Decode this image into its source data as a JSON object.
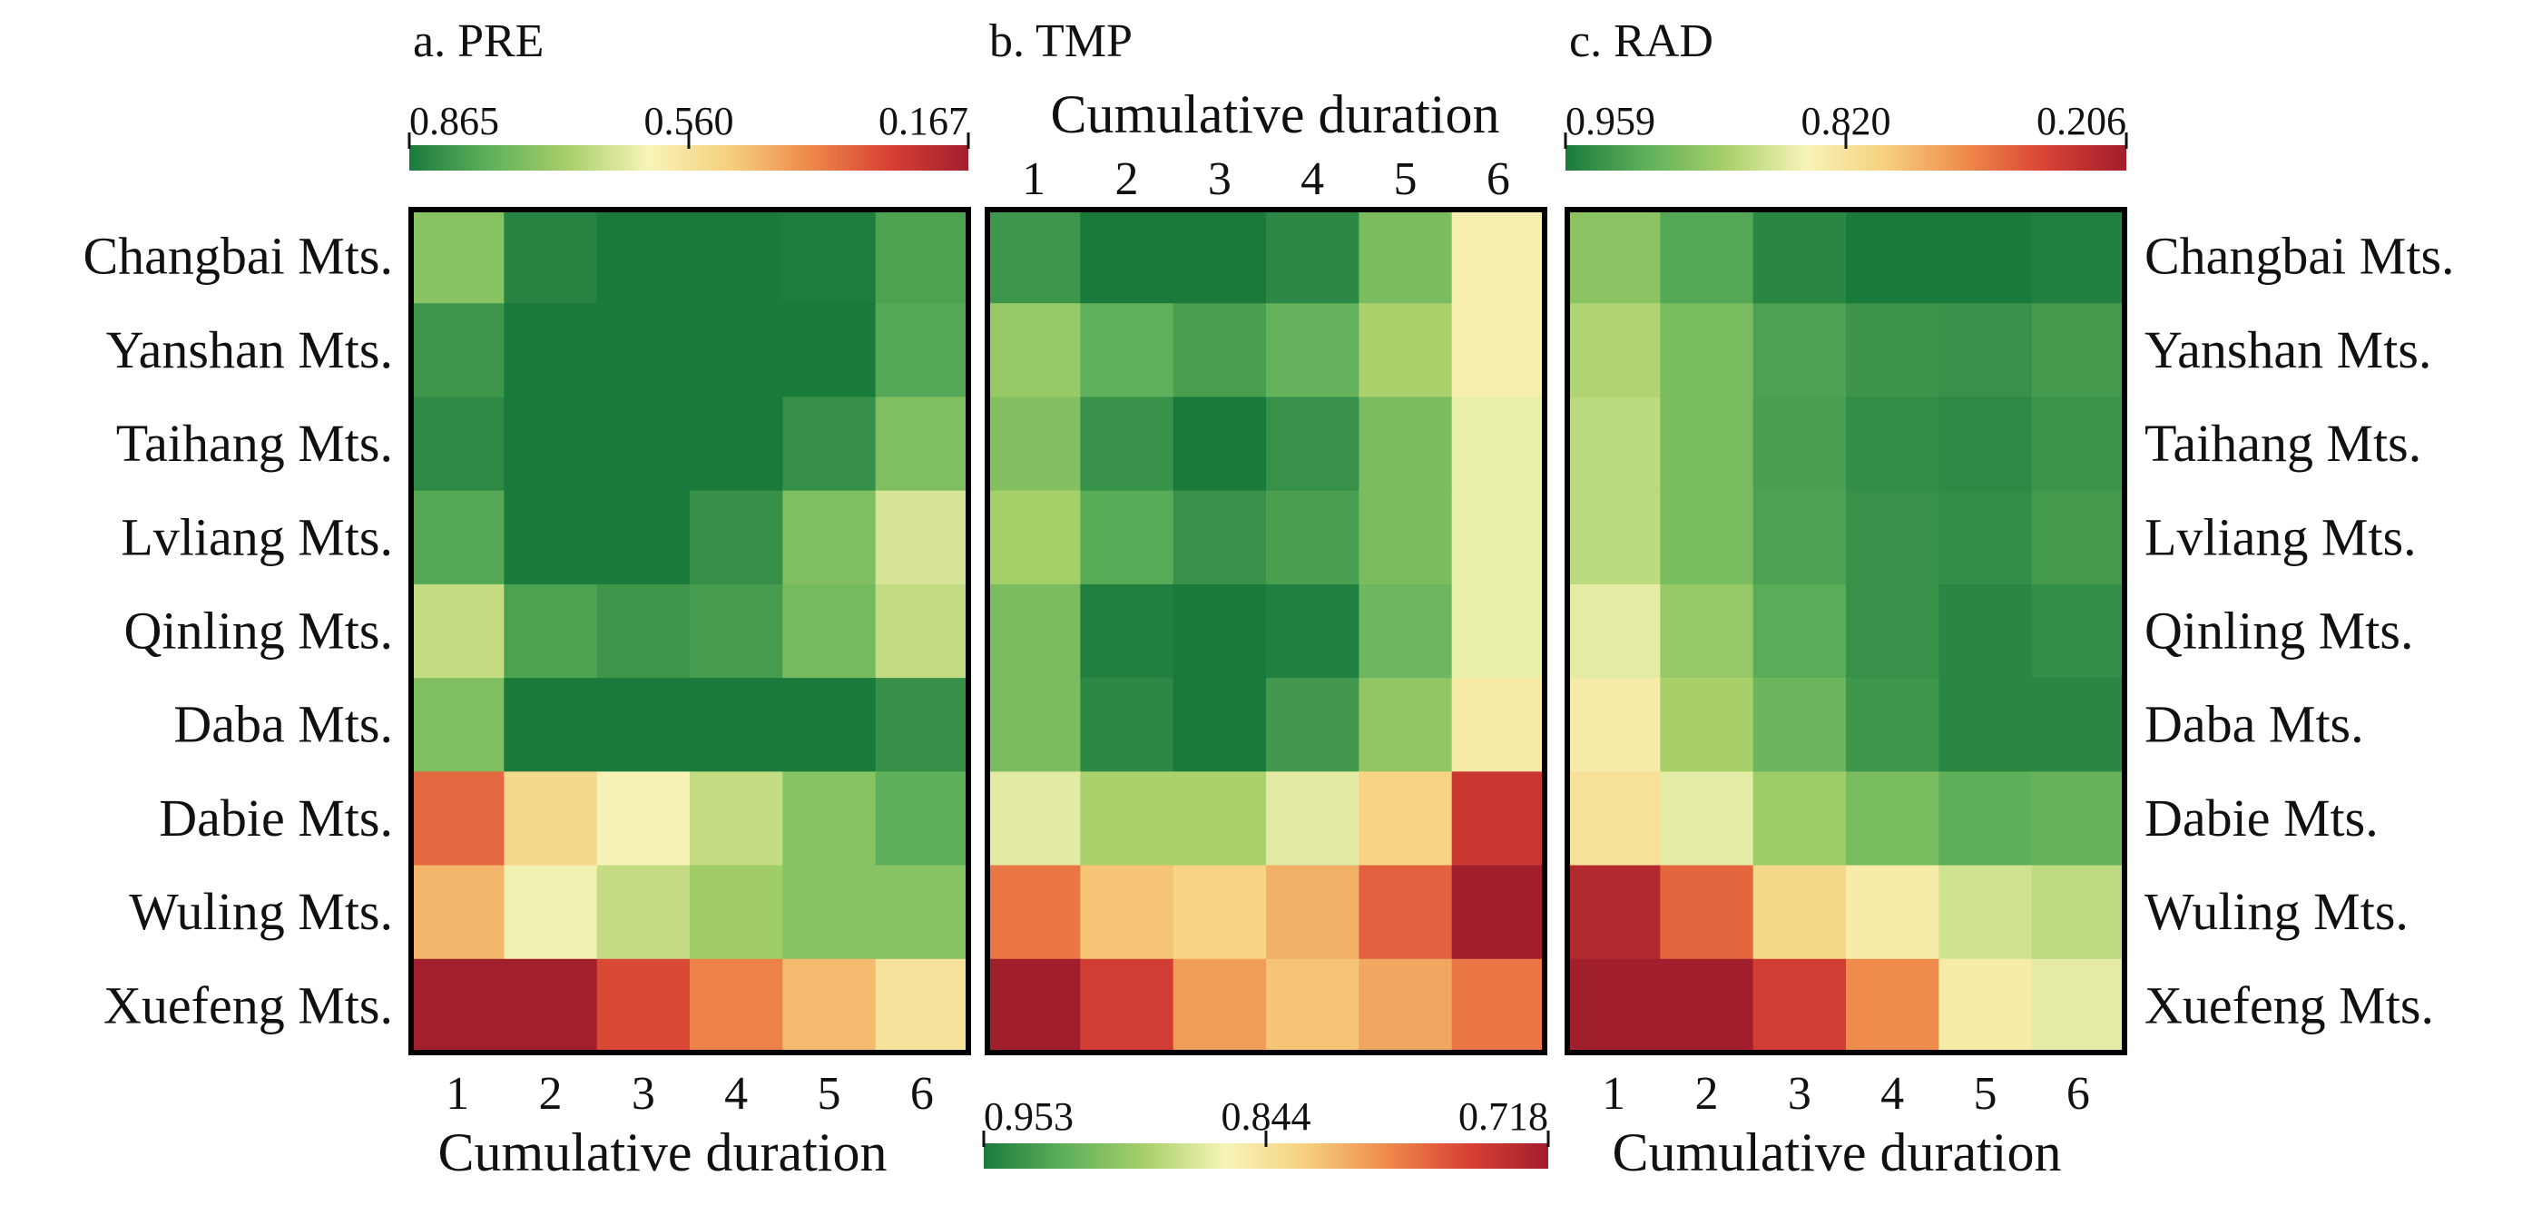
{
  "chart_data": {
    "type": "heatmap",
    "rows": [
      "Changbai Mts.",
      "Yanshan Mts.",
      "Taihang Mts.",
      "Lvliang Mts.",
      "Qinling Mts.",
      "Daba Mts.",
      "Dabie Mts.",
      "Wuling Mts.",
      "Xuefeng Mts."
    ],
    "columns": [
      "1",
      "2",
      "3",
      "4",
      "5",
      "6"
    ],
    "axis_label": "Cumulative duration",
    "palette": [
      "#1a7a3c",
      "#5fb05a",
      "#a8d06a",
      "#f7f4b8",
      "#f6d07e",
      "#ef8a4a",
      "#d84134",
      "#a11e2c"
    ],
    "panels": [
      {
        "title": "a. PRE",
        "colorbar": {
          "ticks": [
            "0.865",
            "0.560",
            "0.167"
          ],
          "min": 0.167,
          "mid": 0.56,
          "max": 0.865
        },
        "values": [
          [
            0.73,
            0.85,
            0.91,
            0.91,
            0.86,
            0.8
          ],
          [
            0.82,
            0.95,
            0.95,
            0.95,
            0.87,
            0.79
          ],
          [
            0.84,
            0.95,
            0.95,
            0.91,
            0.83,
            0.74
          ],
          [
            0.79,
            0.89,
            0.89,
            0.83,
            0.74,
            0.64
          ],
          [
            0.66,
            0.8,
            0.82,
            0.81,
            0.75,
            0.66
          ],
          [
            0.74,
            0.9,
            0.95,
            0.94,
            0.9,
            0.83
          ],
          [
            0.34,
            0.53,
            0.6,
            0.66,
            0.73,
            0.78
          ],
          [
            0.46,
            0.61,
            0.66,
            0.7,
            0.73,
            0.73
          ],
          [
            0.17,
            0.17,
            0.29,
            0.38,
            0.47,
            0.56
          ]
        ]
      },
      {
        "title": "b. TMP",
        "colorbar": {
          "ticks": [
            "0.953",
            "0.844",
            "0.718"
          ],
          "min": 0.718,
          "mid": 0.844,
          "max": 0.953
        },
        "values": [
          [
            0.937,
            0.975,
            0.975,
            0.945,
            0.91,
            0.855
          ],
          [
            0.898,
            0.922,
            0.932,
            0.92,
            0.89,
            0.855
          ],
          [
            0.906,
            0.94,
            0.955,
            0.94,
            0.91,
            0.865
          ],
          [
            0.892,
            0.925,
            0.94,
            0.932,
            0.91,
            0.865
          ],
          [
            0.91,
            0.95,
            0.965,
            0.95,
            0.915,
            0.865
          ],
          [
            0.91,
            0.945,
            0.955,
            0.935,
            0.9,
            0.85
          ],
          [
            0.868,
            0.89,
            0.89,
            0.868,
            0.83,
            0.745
          ],
          [
            0.78,
            0.82,
            0.83,
            0.81,
            0.77,
            0.718
          ],
          [
            0.718,
            0.75,
            0.8,
            0.82,
            0.805,
            0.78
          ]
        ]
      },
      {
        "title": "c. RAD",
        "colorbar": {
          "ticks": [
            "0.959",
            "0.820",
            "0.206"
          ],
          "min": 0.206,
          "mid": 0.82,
          "max": 0.959
        },
        "values": [
          [
            0.895,
            0.925,
            0.95,
            0.965,
            0.965,
            0.955
          ],
          [
            0.875,
            0.905,
            0.93,
            0.94,
            0.942,
            0.935
          ],
          [
            0.87,
            0.905,
            0.932,
            0.945,
            0.948,
            0.94
          ],
          [
            0.87,
            0.905,
            0.93,
            0.942,
            0.945,
            0.935
          ],
          [
            0.85,
            0.89,
            0.922,
            0.942,
            0.95,
            0.945
          ],
          [
            0.83,
            0.88,
            0.912,
            0.938,
            0.95,
            0.95
          ],
          [
            0.815,
            0.85,
            0.885,
            0.905,
            0.92,
            0.915
          ],
          [
            0.26,
            0.47,
            0.77,
            0.83,
            0.86,
            0.868
          ],
          [
            0.206,
            0.206,
            0.36,
            0.56,
            0.83,
            0.85
          ]
        ]
      }
    ]
  }
}
